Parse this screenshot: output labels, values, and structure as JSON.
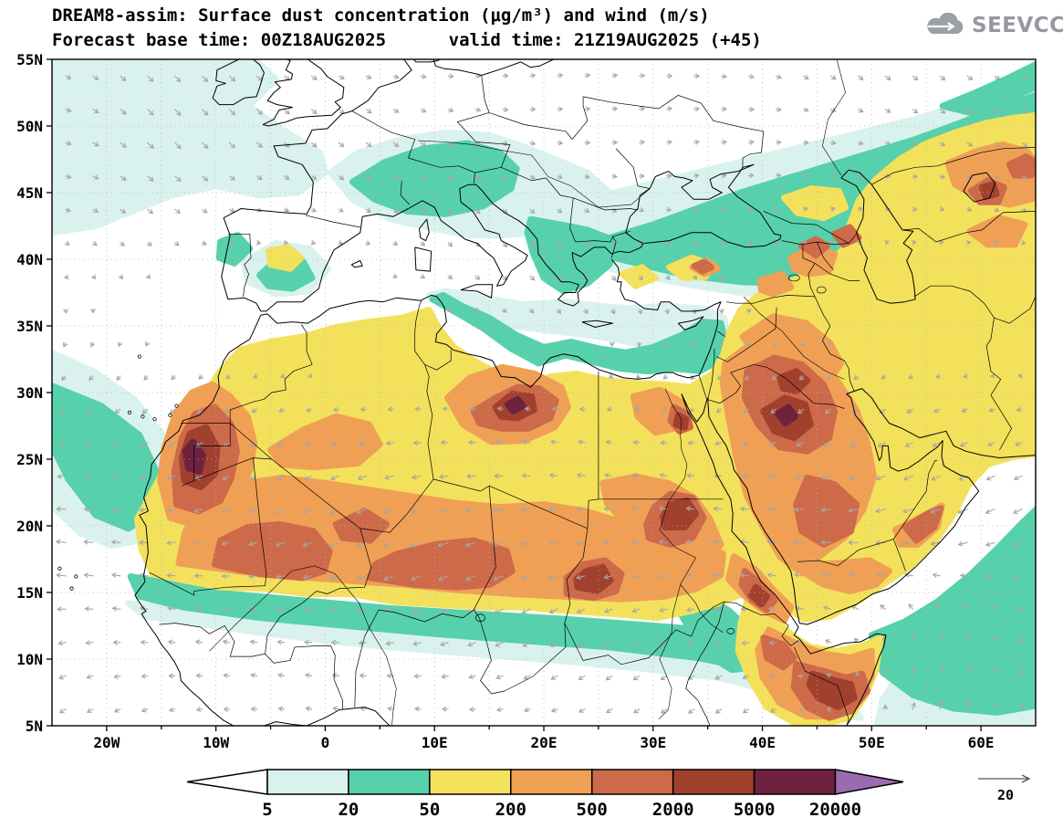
{
  "header": {
    "title": "DREAM8-assim: Surface dust concentration (μg/m³) and wind (m/s)",
    "subtitle": "Forecast base time: 00Z18AUG2025      valid time: 21Z19AUG2025 (+45)"
  },
  "logo": {
    "text": "SEEVCCC"
  },
  "axes": {
    "y_ticks": [
      {
        "label": "55N",
        "lat": 55
      },
      {
        "label": "50N",
        "lat": 50
      },
      {
        "label": "45N",
        "lat": 45
      },
      {
        "label": "40N",
        "lat": 40
      },
      {
        "label": "35N",
        "lat": 35
      },
      {
        "label": "30N",
        "lat": 30
      },
      {
        "label": "25N",
        "lat": 25
      },
      {
        "label": "20N",
        "lat": 20
      },
      {
        "label": "15N",
        "lat": 15
      },
      {
        "label": "10N",
        "lat": 10
      },
      {
        "label": "5N",
        "lat": 5
      }
    ],
    "x_ticks": [
      {
        "label": "20W",
        "lon": -20
      },
      {
        "label": "10W",
        "lon": -10
      },
      {
        "label": "0",
        "lon": 0
      },
      {
        "label": "10E",
        "lon": 10
      },
      {
        "label": "20E",
        "lon": 20
      },
      {
        "label": "30E",
        "lon": 30
      },
      {
        "label": "40E",
        "lon": 40
      },
      {
        "label": "50E",
        "lon": 50
      },
      {
        "label": "60E",
        "lon": 60
      }
    ]
  },
  "colorbar": {
    "levels": [
      "5",
      "20",
      "50",
      "200",
      "500",
      "2000",
      "5000",
      "20000"
    ],
    "colors": [
      "#ffffff",
      "#daf2ee",
      "#57d1ab",
      "#f3e15c",
      "#f0a055",
      "#cd6a49",
      "#a2402e",
      "#6f2140",
      "#9a6bb0"
    ]
  },
  "wind_legend": {
    "value": "20"
  },
  "chart_data": {
    "type": "heatmap",
    "model": "DREAM8-assim",
    "variable": "Surface dust concentration",
    "units": "μg/m³",
    "wind_variable": "wind",
    "wind_units": "m/s",
    "wind_reference": 20,
    "title": "DREAM8-assim: Surface dust concentration (μg/m³) and wind (m/s)",
    "forecast_base_time": "00Z18AUG2025",
    "valid_time": "21Z19AUG2025",
    "lead_hours": 45,
    "lon_range": [
      -25,
      65
    ],
    "lat_range": [
      5,
      55
    ],
    "x_tick_labels": [
      "20W",
      "10W",
      "0",
      "10E",
      "20E",
      "30E",
      "40E",
      "50E",
      "60E"
    ],
    "y_tick_labels": [
      "5N",
      "10N",
      "15N",
      "20N",
      "25N",
      "30N",
      "35N",
      "40N",
      "45N",
      "50N",
      "55N"
    ],
    "grid": "dotted 5-degree graticule",
    "legend_position": "bottom",
    "contour_levels": [
      5,
      20,
      50,
      200,
      500,
      2000,
      5000,
      20000
    ],
    "palette": [
      "#ffffff",
      "#daf2ee",
      "#57d1ab",
      "#f3e15c",
      "#f0a055",
      "#cd6a49",
      "#a2402e",
      "#6f2140",
      "#9a6bb0"
    ],
    "high_dust_regions": [
      "Western Sahara / Morocco (max > 5000)",
      "Mauritania-Mali Sahel band (500-2000)",
      "Niger-Chad (500-2000)",
      "Libya interior (2000-5000)",
      "Darfur Sudan (2000-5000)",
      "NE Sudan / S Egypt (2000-5000)",
      "Eritrea Red Sea coast (2000-5000)",
      "Northern Saudi Arabia (2000-5000)",
      "Somalia / Horn of Africa (2000-5000)",
      "Aral region (2000-5000)"
    ],
    "low_dust_regions": [
      "NE Atlantic band (5-50)",
      "Alpine Europe (20-50)",
      "Central Mediterranean coastal band (20-50)",
      "Sub-Sahel band ~10-14N (5-50)",
      "Black Sea / Caucasus / Caspian (20-50)",
      "NW Indian Ocean (5-50)"
    ]
  }
}
